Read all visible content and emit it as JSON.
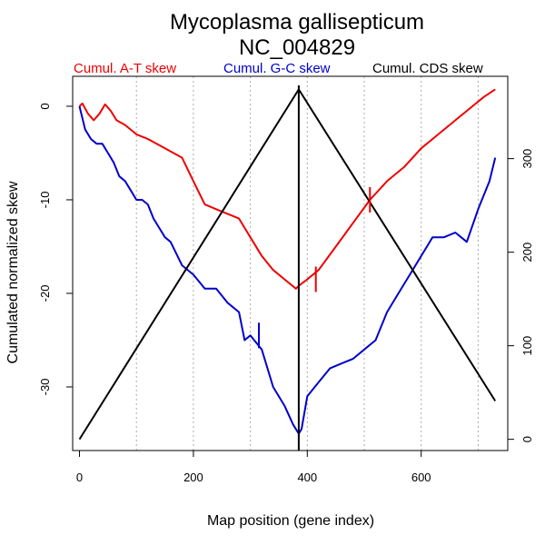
{
  "chart_data": {
    "type": "line",
    "title": "Mycoplasma gallisepticum",
    "subtitle": "NC_004829",
    "xlabel": "Map position (gene index)",
    "ylabel": "Cumulated normalized skew",
    "xlim": [
      -12,
      752
    ],
    "ylim": [
      -36.8,
      3.2
    ],
    "y2lim": [
      -12,
      388
    ],
    "x_ticks": [
      0,
      200,
      400,
      600
    ],
    "y_ticks": [
      0,
      -10,
      -20,
      -30
    ],
    "y2_ticks": [
      0,
      100,
      200,
      300
    ],
    "grid_x": [
      100,
      200,
      300,
      400,
      500,
      600,
      700
    ],
    "legend": [
      "Cumul. A-T skew",
      "Cumul. G-C skew",
      "Cumul. CDS skew"
    ],
    "legend_position": "top",
    "colors": {
      "at": "#ee0000",
      "gc": "#0000cc",
      "cds": "#000000",
      "grid": "#aaaaaa"
    },
    "series": [
      {
        "key": "at",
        "axis": "left",
        "x": [
          0,
          5,
          15,
          25,
          35,
          45,
          55,
          65,
          80,
          100,
          120,
          150,
          180,
          200,
          220,
          240,
          260,
          280,
          300,
          320,
          340,
          360,
          380,
          385,
          400,
          420,
          450,
          480,
          510,
          540,
          570,
          600,
          630,
          660,
          690,
          710,
          730
        ],
        "y": [
          0,
          0.3,
          -0.8,
          -1.5,
          -0.8,
          0.2,
          -0.5,
          -1.5,
          -2.0,
          -3.0,
          -3.5,
          -4.5,
          -5.5,
          -8.0,
          -10.5,
          -11.0,
          -11.5,
          -12.0,
          -14.0,
          -16.0,
          -17.5,
          -18.5,
          -19.5,
          -19.2,
          -18.5,
          -17.5,
          -15.0,
          -12.5,
          -10.0,
          -8.0,
          -6.5,
          -4.5,
          -3.0,
          -1.5,
          0.0,
          1.0,
          1.8
        ]
      },
      {
        "key": "gc",
        "axis": "left",
        "x": [
          0,
          10,
          20,
          30,
          40,
          50,
          60,
          70,
          80,
          90,
          100,
          110,
          120,
          130,
          140,
          150,
          160,
          180,
          200,
          220,
          240,
          260,
          280,
          290,
          300,
          320,
          340,
          360,
          375,
          385,
          390,
          400,
          420,
          440,
          460,
          480,
          500,
          520,
          540,
          560,
          580,
          600,
          610,
          620,
          640,
          660,
          680,
          700,
          720,
          730
        ],
        "y": [
          0,
          -2.5,
          -3.5,
          -4.0,
          -4.0,
          -5.0,
          -6.0,
          -7.5,
          -8.0,
          -9.0,
          -10.0,
          -10.0,
          -10.5,
          -12.0,
          -13.0,
          -14.0,
          -14.5,
          -17.0,
          -18.0,
          -19.5,
          -19.5,
          -21.0,
          -22.0,
          -25.0,
          -24.5,
          -26.0,
          -30.0,
          -32.0,
          -34.0,
          -35.0,
          -34.5,
          -31.0,
          -29.5,
          -28.0,
          -27.5,
          -27.0,
          -26.0,
          -25.0,
          -22.0,
          -20.0,
          -18.0,
          -16.0,
          -15.0,
          -14.0,
          -14.0,
          -13.5,
          -14.5,
          -11.0,
          -8.0,
          -5.5
        ]
      },
      {
        "key": "cds",
        "axis": "right",
        "x": [
          0,
          385,
          730
        ],
        "y": [
          0,
          374,
          41
        ]
      }
    ],
    "vertical_line_x": 385,
    "tick_marks": [
      {
        "series": "at",
        "x": 415,
        "y": -18.5
      },
      {
        "series": "at",
        "x": 510,
        "y": -10.0
      },
      {
        "series": "gc",
        "x": 315,
        "y": -24.5
      }
    ]
  }
}
